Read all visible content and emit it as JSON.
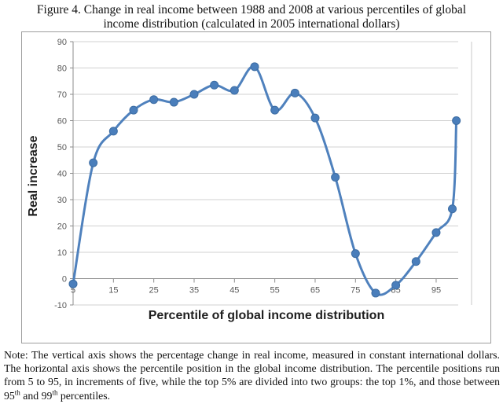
{
  "figure": {
    "title_line1": "Figure 4. Change in real income between 1988 and 2008 at various percentiles of global",
    "title_line2": "income distribution (calculated in 2005 international dollars)",
    "note": {
      "prefix": "Note: The vertical axis shows the percentage change in real income, measured in constant international dollars. The horizontal axis shows the percentile position in the global income distribution. The percentile positions run from 5 to 95, in increments of five, while the top 5% are divided into two groups: the top 1%, and those between 95",
      "sup1": "th",
      "middle": " and 99",
      "sup2": "th",
      "suffix": " percentiles."
    }
  },
  "chart_data": {
    "type": "line",
    "title": "",
    "xlabel": "Percentile of global income distribution",
    "ylabel": "Real increase",
    "x": [
      5,
      10,
      15,
      20,
      25,
      30,
      35,
      40,
      45,
      50,
      55,
      60,
      65,
      70,
      75,
      80,
      85,
      90,
      95,
      99,
      100
    ],
    "y": [
      -2,
      44,
      56,
      64,
      68,
      67,
      70,
      73.5,
      71.5,
      80.5,
      64,
      70.5,
      61,
      38.5,
      9.5,
      -5.5,
      -2.5,
      6.5,
      17.5,
      26.5,
      60
    ],
    "x_tick_labels": [
      "5",
      "15",
      "25",
      "35",
      "45",
      "55",
      "65",
      "75",
      "85",
      "95"
    ],
    "x_tick_values": [
      5,
      15,
      25,
      35,
      45,
      55,
      65,
      75,
      85,
      95
    ],
    "y_tick_labels": [
      "-10",
      "0",
      "10",
      "20",
      "30",
      "40",
      "50",
      "60",
      "70",
      "80",
      "90"
    ],
    "y_tick_values": [
      -10,
      0,
      10,
      20,
      30,
      40,
      50,
      60,
      70,
      80,
      90
    ],
    "xlim": [
      5,
      100
    ],
    "ylim": [
      -10,
      90
    ],
    "grid": "horizontal",
    "legend": "none",
    "smooth": true,
    "marker": "circle",
    "colors": {
      "line": "#4f81bd",
      "marker_fill": "#4a7ebb",
      "marker_stroke": "#3d6da3",
      "gridline": "#d0d0d0",
      "plot_border": "#c8c8c8",
      "axis": "#8c8c8c",
      "tick_text": "#595959"
    }
  }
}
